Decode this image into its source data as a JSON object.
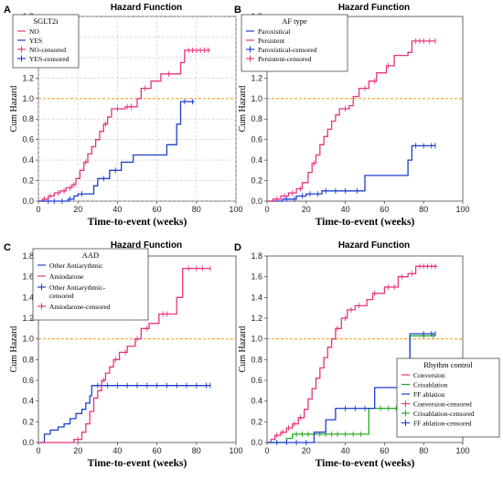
{
  "chart_data": [
    {
      "type": "line",
      "panel": "A",
      "title": "Hazard Function",
      "xlabel": "Time-to-event (weeks)",
      "ylabel": "Cum Hazard",
      "xlim": [
        0,
        100
      ],
      "ylim": [
        0,
        1.8
      ],
      "xticks": [
        0,
        20,
        40,
        60,
        80,
        100
      ],
      "yticks": [
        0.0,
        0.2,
        0.4,
        0.6,
        0.8,
        1.0,
        1.2,
        1.4,
        1.6,
        1.8
      ],
      "grid": true,
      "reference_line": 1.0,
      "legend_title": "SGLT2i",
      "legend_position": "top-left",
      "legend_entries": [
        "NO",
        "YES",
        "NO-censored",
        "YES-censored"
      ],
      "series": [
        {
          "name": "NO",
          "color": "#e8357a",
          "steps": [
            [
              0,
              0
            ],
            [
              2,
              0.02
            ],
            [
              5,
              0.05
            ],
            [
              8,
              0.08
            ],
            [
              11,
              0.1
            ],
            [
              14,
              0.13
            ],
            [
              17,
              0.16
            ],
            [
              19,
              0.22
            ],
            [
              21,
              0.3
            ],
            [
              23,
              0.38
            ],
            [
              25,
              0.46
            ],
            [
              27,
              0.53
            ],
            [
              29,
              0.6
            ],
            [
              31,
              0.68
            ],
            [
              33,
              0.75
            ],
            [
              35,
              0.82
            ],
            [
              37,
              0.9
            ],
            [
              44,
              0.92
            ],
            [
              50,
              1.0
            ],
            [
              52,
              1.1
            ],
            [
              57,
              1.17
            ],
            [
              62,
              1.24
            ],
            [
              72,
              1.35
            ],
            [
              74,
              1.47
            ],
            [
              87,
              1.47
            ]
          ],
          "censored": [
            3,
            6,
            10,
            13,
            16,
            18,
            24,
            34,
            40,
            45,
            47,
            54,
            66,
            76,
            78,
            80,
            82,
            84,
            86
          ]
        },
        {
          "name": "YES",
          "color": "#1f3fcf",
          "steps": [
            [
              0,
              0
            ],
            [
              15,
              0.02
            ],
            [
              18,
              0.05
            ],
            [
              20,
              0.07
            ],
            [
              28,
              0.15
            ],
            [
              30,
              0.22
            ],
            [
              36,
              0.3
            ],
            [
              42,
              0.38
            ],
            [
              48,
              0.45
            ],
            [
              65,
              0.55
            ],
            [
              70,
              0.75
            ],
            [
              72,
              0.97
            ],
            [
              79,
              0.97
            ]
          ],
          "censored": [
            5,
            8,
            12,
            16,
            22,
            33,
            39,
            74,
            78
          ]
        }
      ]
    },
    {
      "type": "line",
      "panel": "B",
      "title": "Hazard Function",
      "xlabel": "Time-to-event (weeks)",
      "ylabel": "Cum Hazard",
      "xlim": [
        0,
        100
      ],
      "ylim": [
        0,
        1.8
      ],
      "xticks": [
        0,
        20,
        40,
        60,
        80,
        100
      ],
      "yticks": [
        0.0,
        0.2,
        0.4,
        0.6,
        0.8,
        1.0,
        1.2,
        1.4,
        1.6,
        1.8
      ],
      "grid": false,
      "reference_line": 1.0,
      "legend_title": "AF type",
      "legend_position": "top-left",
      "legend_entries": [
        "Paroxistical",
        "Persistent",
        "Paroxistical-censored",
        "Persistent-censored"
      ],
      "series": [
        {
          "name": "Paroxistical",
          "color": "#1f3fcf",
          "steps": [
            [
              0,
              0
            ],
            [
              8,
              0.02
            ],
            [
              15,
              0.05
            ],
            [
              20,
              0.07
            ],
            [
              28,
              0.1
            ],
            [
              50,
              0.25
            ],
            [
              72,
              0.4
            ],
            [
              74,
              0.54
            ],
            [
              86,
              0.54
            ]
          ],
          "censored": [
            10,
            14,
            18,
            22,
            26,
            30,
            35,
            40,
            46,
            76,
            80,
            84,
            86
          ]
        },
        {
          "name": "Persistent",
          "color": "#e8357a",
          "steps": [
            [
              0,
              0
            ],
            [
              3,
              0.02
            ],
            [
              7,
              0.05
            ],
            [
              11,
              0.08
            ],
            [
              15,
              0.12
            ],
            [
              18,
              0.18
            ],
            [
              21,
              0.28
            ],
            [
              23,
              0.37
            ],
            [
              25,
              0.45
            ],
            [
              27,
              0.55
            ],
            [
              29,
              0.63
            ],
            [
              31,
              0.7
            ],
            [
              33,
              0.78
            ],
            [
              35,
              0.84
            ],
            [
              37,
              0.9
            ],
            [
              42,
              0.93
            ],
            [
              44,
              1.02
            ],
            [
              47,
              1.1
            ],
            [
              52,
              1.17
            ],
            [
              56,
              1.25
            ],
            [
              61,
              1.32
            ],
            [
              65,
              1.42
            ],
            [
              72,
              1.45
            ],
            [
              74,
              1.56
            ],
            [
              86,
              1.56
            ]
          ],
          "censored": [
            5,
            9,
            13,
            17,
            24,
            40,
            50,
            55,
            62,
            76,
            78,
            80,
            83,
            86
          ]
        }
      ]
    },
    {
      "type": "line",
      "panel": "C",
      "title": "Hazard Function",
      "xlabel": "Time-to-event (weeks)",
      "ylabel": "Cum Hazard",
      "xlim": [
        0,
        100
      ],
      "ylim": [
        0,
        1.8
      ],
      "xticks": [
        0,
        20,
        40,
        60,
        80,
        100
      ],
      "yticks": [
        0.0,
        0.2,
        0.4,
        0.6,
        0.8,
        1.0,
        1.2,
        1.4,
        1.6,
        1.8
      ],
      "grid": false,
      "reference_line": 1.0,
      "legend_title": "AAD",
      "legend_position": "top-left",
      "legend_entries": [
        "Other Antiarythmic",
        "Amiodarone",
        "Other Antiarythmic-censored",
        "Amiodarone-censored"
      ],
      "series": [
        {
          "name": "Other Antiarythmic",
          "color": "#1f3fcf",
          "steps": [
            [
              0,
              0
            ],
            [
              3,
              0.08
            ],
            [
              6,
              0.12
            ],
            [
              10,
              0.15
            ],
            [
              13,
              0.18
            ],
            [
              16,
              0.23
            ],
            [
              19,
              0.28
            ],
            [
              22,
              0.32
            ],
            [
              24,
              0.38
            ],
            [
              26,
              0.45
            ],
            [
              27,
              0.55
            ],
            [
              87,
              0.55
            ]
          ],
          "censored": [
            30,
            35,
            40,
            45,
            50,
            55,
            60,
            65,
            70,
            75,
            80,
            85,
            87
          ]
        },
        {
          "name": "Amiodarone",
          "color": "#e8357a",
          "steps": [
            [
              0,
              0
            ],
            [
              18,
              0.03
            ],
            [
              22,
              0.1
            ],
            [
              24,
              0.18
            ],
            [
              26,
              0.3
            ],
            [
              28,
              0.43
            ],
            [
              30,
              0.5
            ],
            [
              32,
              0.6
            ],
            [
              34,
              0.67
            ],
            [
              36,
              0.73
            ],
            [
              38,
              0.8
            ],
            [
              41,
              0.87
            ],
            [
              45,
              0.93
            ],
            [
              49,
              1.0
            ],
            [
              52,
              1.1
            ],
            [
              56,
              1.15
            ],
            [
              61,
              1.24
            ],
            [
              68,
              1.24
            ],
            [
              70,
              1.4
            ],
            [
              73,
              1.68
            ],
            [
              87,
              1.68
            ]
          ],
          "censored": [
            20,
            33,
            39,
            44,
            50,
            55,
            63,
            65,
            76,
            80,
            83,
            87
          ]
        }
      ]
    },
    {
      "type": "line",
      "panel": "D",
      "title": "Hazard Function",
      "xlabel": "Time-to-event (weeks)",
      "ylabel": "Cum Hazard",
      "xlim": [
        0,
        100
      ],
      "ylim": [
        0,
        1.8
      ],
      "xticks": [
        0,
        20,
        40,
        60,
        80,
        100
      ],
      "yticks": [
        0.0,
        0.2,
        0.4,
        0.6,
        0.8,
        1.0,
        1.2,
        1.4,
        1.6,
        1.8
      ],
      "grid": false,
      "reference_line": 1.0,
      "legend_title": "Rhythm control",
      "legend_position": "bottom-right",
      "legend_entries": [
        "Conversion",
        "Crioablation",
        "FF ablation",
        "Conversion-censored",
        "Crioablation-censored",
        "FF ablation-censored"
      ],
      "series": [
        {
          "name": "Conversion",
          "color": "#e8357a",
          "steps": [
            [
              0,
              0
            ],
            [
              2,
              0.03
            ],
            [
              4,
              0.07
            ],
            [
              7,
              0.1
            ],
            [
              10,
              0.14
            ],
            [
              13,
              0.18
            ],
            [
              16,
              0.24
            ],
            [
              19,
              0.32
            ],
            [
              21,
              0.42
            ],
            [
              23,
              0.52
            ],
            [
              25,
              0.62
            ],
            [
              27,
              0.72
            ],
            [
              29,
              0.82
            ],
            [
              31,
              0.92
            ],
            [
              33,
              1.0
            ],
            [
              35,
              1.1
            ],
            [
              38,
              1.2
            ],
            [
              41,
              1.28
            ],
            [
              45,
              1.32
            ],
            [
              51,
              1.38
            ],
            [
              54,
              1.44
            ],
            [
              60,
              1.5
            ],
            [
              67,
              1.6
            ],
            [
              72,
              1.63
            ],
            [
              76,
              1.7
            ],
            [
              87,
              1.7
            ]
          ],
          "censored": [
            5,
            8,
            11,
            14,
            17,
            36,
            40,
            43,
            47,
            55,
            62,
            65,
            69,
            74,
            78,
            80,
            82,
            84,
            86
          ]
        },
        {
          "name": "Crioablation",
          "color": "#22aa22",
          "steps": [
            [
              0,
              0
            ],
            [
              10,
              0.04
            ],
            [
              13,
              0.08
            ],
            [
              52,
              0.33
            ],
            [
              72,
              0.33
            ],
            [
              73,
              1.03
            ],
            [
              86,
              1.03
            ]
          ],
          "censored": [
            15,
            18,
            21,
            24,
            27,
            30,
            33,
            36,
            40,
            44,
            48,
            58,
            62,
            66,
            70,
            80,
            85
          ]
        },
        {
          "name": "FF ablation",
          "color": "#1f3fcf",
          "steps": [
            [
              0,
              0
            ],
            [
              24,
              0.1
            ],
            [
              30,
              0.22
            ],
            [
              35,
              0.33
            ],
            [
              55,
              0.53
            ],
            [
              72,
              0.53
            ],
            [
              73,
              1.05
            ],
            [
              86,
              1.05
            ]
          ],
          "censored": [
            5,
            10,
            15,
            20,
            40,
            45,
            50,
            80,
            84,
            86
          ]
        }
      ]
    }
  ]
}
